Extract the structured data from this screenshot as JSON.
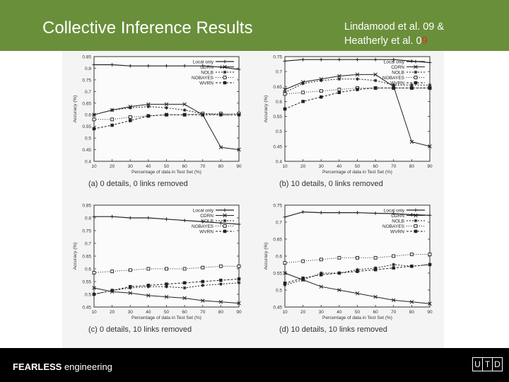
{
  "slide": {
    "title": "Collective Inference Results",
    "citation_line1": "Lindamood et al. 09 &",
    "citation_line2_prefix": "Heatherly et al. 0",
    "citation_line2_highlight": "9",
    "footer_bold": "FEARLESS",
    "footer_rest": " engineering",
    "logo_letters": [
      "U",
      "T",
      "D"
    ],
    "colors": {
      "header": "#6a8f3a",
      "footer": "#000000",
      "highlight": "#d8321e"
    }
  },
  "chart_data": [
    {
      "type": "line",
      "caption": "(a) 0 details, 0 links removed",
      "xlabel": "Percentage of data in Test Set (%)",
      "ylabel": "Accuracy (%)",
      "x": [
        10,
        20,
        30,
        40,
        50,
        60,
        70,
        80,
        90
      ],
      "x_tick_labels": [
        "10",
        "20",
        "30",
        "40",
        "50",
        "60",
        "70",
        "80",
        "90"
      ],
      "ylim": [
        0.4,
        0.85
      ],
      "y_tick_labels": [
        "0.4",
        "0.45",
        "0.5",
        "0.55",
        "0.6",
        "0.65",
        "0.7",
        "0.75",
        "0.8",
        "0.85"
      ],
      "legend_position": "top-right",
      "series": [
        {
          "name": "Local only",
          "values": [
            0.815,
            0.815,
            0.81,
            0.81,
            0.81,
            0.81,
            0.81,
            0.805,
            0.795
          ]
        },
        {
          "name": "CDRN",
          "values": [
            0.6,
            0.62,
            0.635,
            0.645,
            0.645,
            0.645,
            0.6,
            0.46,
            0.45
          ]
        },
        {
          "name": "NOLB",
          "values": [
            0.6,
            0.62,
            0.63,
            0.635,
            0.63,
            0.62,
            0.605,
            0.6,
            0.6
          ]
        },
        {
          "name": "NOBAYES",
          "values": [
            0.58,
            0.58,
            0.59,
            0.595,
            0.6,
            0.6,
            0.605,
            0.605,
            0.605
          ]
        },
        {
          "name": "WVRN",
          "values": [
            0.54,
            0.555,
            0.575,
            0.595,
            0.6,
            0.6,
            0.6,
            0.6,
            0.6
          ]
        }
      ]
    },
    {
      "type": "line",
      "caption": "(b) 10 details, 0 links removed",
      "xlabel": "Percentage of data in Test Set (%)",
      "ylabel": "Accuracy (%)",
      "x": [
        10,
        20,
        30,
        40,
        50,
        60,
        70,
        80,
        90
      ],
      "x_tick_labels": [
        "10",
        "20",
        "30",
        "40",
        "50",
        "60",
        "70",
        "80",
        "90"
      ],
      "ylim": [
        0.4,
        0.75
      ],
      "y_tick_labels": [
        "0.4",
        "0.45",
        "0.5",
        "0.55",
        "0.6",
        "0.65",
        "0.7",
        "0.75"
      ],
      "legend_position": "top-right",
      "series": [
        {
          "name": "Local only",
          "values": [
            0.735,
            0.74,
            0.74,
            0.74,
            0.74,
            0.74,
            0.74,
            0.735,
            0.73
          ]
        },
        {
          "name": "CDRN",
          "values": [
            0.64,
            0.665,
            0.675,
            0.685,
            0.69,
            0.69,
            0.65,
            0.465,
            0.45
          ]
        },
        {
          "name": "NOLB",
          "values": [
            0.63,
            0.66,
            0.67,
            0.675,
            0.675,
            0.67,
            0.655,
            0.655,
            0.655
          ]
        },
        {
          "name": "NOBAYES",
          "values": [
            0.625,
            0.63,
            0.635,
            0.64,
            0.645,
            0.645,
            0.645,
            0.645,
            0.645
          ]
        },
        {
          "name": "WVRN",
          "values": [
            0.575,
            0.6,
            0.615,
            0.63,
            0.64,
            0.645,
            0.645,
            0.645,
            0.645
          ]
        }
      ]
    },
    {
      "type": "line",
      "caption": "(c) 0 details, 10 links removed",
      "xlabel": "Percentage of data in Test Set (%)",
      "ylabel": "Accuracy (%)",
      "x": [
        10,
        20,
        30,
        40,
        50,
        60,
        70,
        80,
        90
      ],
      "x_tick_labels": [
        "10",
        "20",
        "30",
        "40",
        "50",
        "60",
        "70",
        "80",
        "90"
      ],
      "ylim": [
        0.45,
        0.85
      ],
      "y_tick_labels": [
        "0.45",
        "0.5",
        "0.55",
        "0.6",
        "0.65",
        "0.7",
        "0.75",
        "0.8",
        "0.85"
      ],
      "legend_position": "top-right",
      "series": [
        {
          "name": "Local only",
          "values": [
            0.805,
            0.805,
            0.8,
            0.8,
            0.795,
            0.79,
            0.785,
            0.78,
            0.775
          ]
        },
        {
          "name": "CDRN",
          "values": [
            0.525,
            0.51,
            0.505,
            0.495,
            0.49,
            0.485,
            0.475,
            0.47,
            0.465
          ]
        },
        {
          "name": "NOLB",
          "values": [
            0.5,
            0.515,
            0.525,
            0.53,
            0.53,
            0.525,
            0.535,
            0.54,
            0.545
          ]
        },
        {
          "name": "NOBAYES",
          "values": [
            0.585,
            0.59,
            0.595,
            0.6,
            0.6,
            0.6,
            0.605,
            0.61,
            0.61
          ]
        },
        {
          "name": "WVRN",
          "values": [
            0.5,
            0.515,
            0.53,
            0.535,
            0.54,
            0.545,
            0.55,
            0.555,
            0.56
          ]
        }
      ]
    },
    {
      "type": "line",
      "caption": "(d) 10 details, 10 links removed",
      "xlabel": "Percentage of data in Test Set (%)",
      "ylabel": "Accuracy (%)",
      "x": [
        10,
        20,
        30,
        40,
        50,
        60,
        70,
        80,
        90
      ],
      "x_tick_labels": [
        "10",
        "20",
        "30",
        "40",
        "50",
        "60",
        "70",
        "80",
        "90"
      ],
      "ylim": [
        0.45,
        0.75
      ],
      "y_tick_labels": [
        "0.45",
        "0.5",
        "0.55",
        "0.6",
        "0.65",
        "0.7",
        "0.75"
      ],
      "legend_position": "top-right",
      "series": [
        {
          "name": "Local only",
          "values": [
            0.715,
            0.73,
            0.728,
            0.728,
            0.728,
            0.726,
            0.725,
            0.722,
            0.72
          ]
        },
        {
          "name": "CDRN",
          "values": [
            0.55,
            0.53,
            0.51,
            0.5,
            0.49,
            0.48,
            0.47,
            0.465,
            0.46
          ]
        },
        {
          "name": "NOLB",
          "values": [
            0.515,
            0.53,
            0.55,
            0.55,
            0.56,
            0.565,
            0.575,
            0.57,
            0.575
          ]
        },
        {
          "name": "NOBAYES",
          "values": [
            0.58,
            0.585,
            0.59,
            0.595,
            0.595,
            0.595,
            0.6,
            0.605,
            0.605
          ]
        },
        {
          "name": "WVRN",
          "values": [
            0.52,
            0.535,
            0.545,
            0.55,
            0.555,
            0.56,
            0.565,
            0.57,
            0.575
          ]
        }
      ]
    }
  ]
}
